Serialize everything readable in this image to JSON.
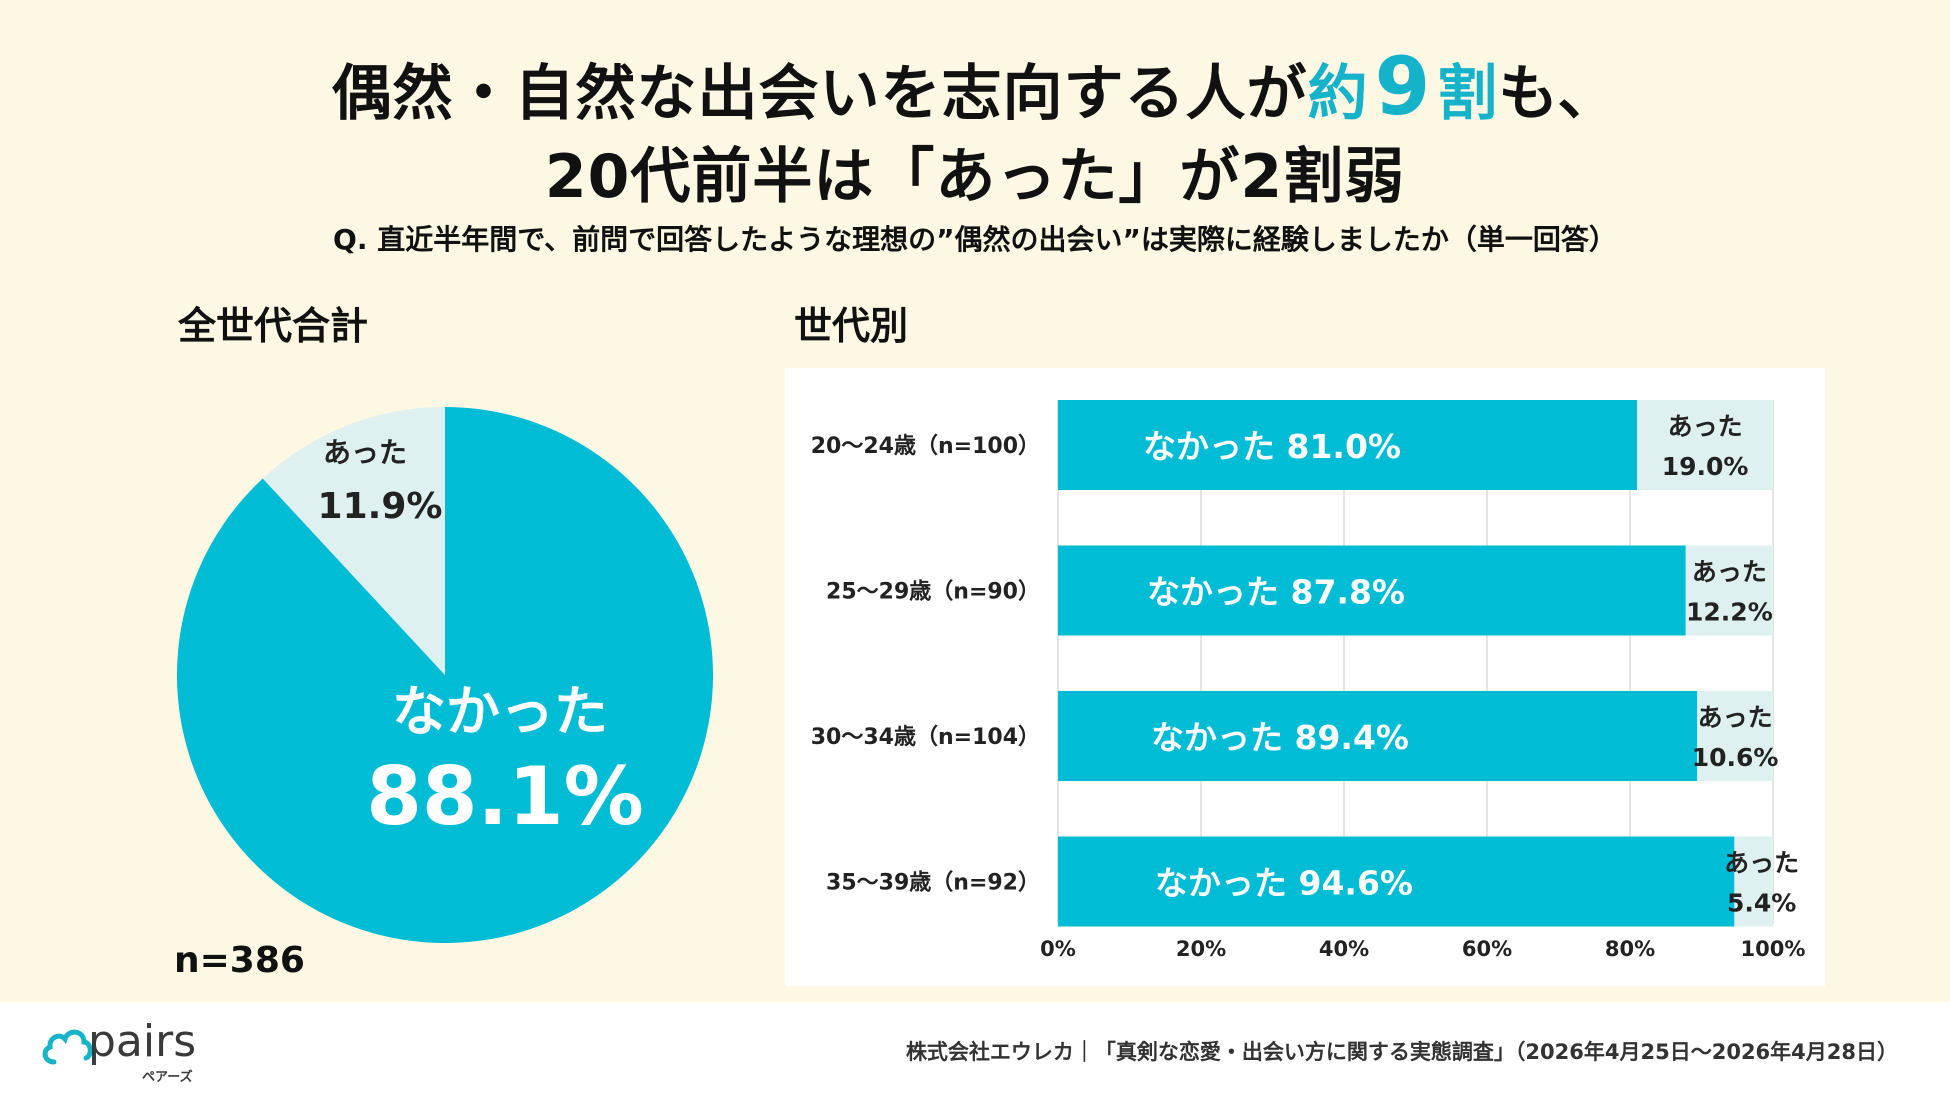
{
  "title": {
    "line1_before": "偶然・自然な出会いを志向する人が",
    "line1_accent_a": "約",
    "line1_accent_num": "9",
    "line1_accent_b": "割",
    "line1_after": "も、",
    "line2": "20代前半は「あった」が2割弱"
  },
  "question": "Q. 直近半年間で、前問で回答したような理想の”偶然の出会い”は実際に経験しましたか（単一回答）",
  "colors": {
    "primary": "#00bcd4",
    "secondary": "#dff0f1",
    "accent_text": "#15b3c9"
  },
  "chart_data": [
    {
      "type": "pie",
      "heading": "全世代合計",
      "n_label": "n=386",
      "slices": [
        {
          "label": "なかった",
          "value": 88.1,
          "value_label": "88.1%"
        },
        {
          "label": "あった",
          "value": 11.9,
          "value_label": "11.9%"
        }
      ]
    },
    {
      "type": "bar",
      "orientation": "horizontal",
      "stacked": true,
      "heading": "世代別",
      "categories": [
        "20～24歳（n=100）",
        "25～29歳（n=90）",
        "30～34歳（n=104）",
        "35～39歳（n=92）"
      ],
      "series": [
        {
          "name": "なかった",
          "values": [
            81.0,
            87.8,
            89.4,
            94.6
          ]
        },
        {
          "name": "あった",
          "values": [
            19.0,
            12.2,
            10.6,
            5.4
          ]
        }
      ],
      "xlim": [
        0,
        100
      ],
      "x_ticks": [
        "0%",
        "20%",
        "40%",
        "60%",
        "80%",
        "100%"
      ],
      "grid": true
    }
  ],
  "footer": {
    "logo_text": "pairs",
    "logo_kana": "ペアーズ",
    "source": "株式会社エウレカ｜「真剣な恋愛・出会い方に関する実態調査」（2026年4月25日～2026年4月28日）"
  }
}
